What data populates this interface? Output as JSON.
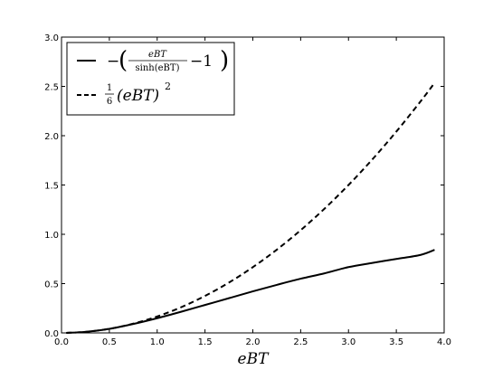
{
  "chart_data": {
    "type": "line",
    "title": "",
    "xlabel": "eBT",
    "ylabel": "",
    "xlim": [
      0.0,
      4.0
    ],
    "ylim": [
      0.0,
      3.0
    ],
    "grid": false,
    "legend_position": "top-left",
    "x_ticks": [
      "0.0",
      "0.5",
      "1.0",
      "1.5",
      "2.0",
      "2.5",
      "3.0",
      "3.5",
      "4.0"
    ],
    "y_ticks": [
      "0.0",
      "0.5",
      "1.0",
      "1.5",
      "2.0",
      "2.5",
      "3.0"
    ],
    "x": [
      0.05,
      0.25,
      0.5,
      0.75,
      1.0,
      1.25,
      1.5,
      1.75,
      2.0,
      2.25,
      2.5,
      2.75,
      3.0,
      3.25,
      3.5,
      3.75,
      3.9
    ],
    "series": [
      {
        "legend_text": {
          "prefix": "−",
          "numerator": "eBT",
          "denominator": "sinh(eBT)",
          "suffix": "−1"
        },
        "style": "solid",
        "color": "#000000",
        "values": [
          0.0004,
          0.0104,
          0.0411,
          0.0904,
          0.1491,
          0.2144,
          0.2834,
          0.3519,
          0.4215,
          0.487,
          0.55,
          0.6044,
          0.6673,
          0.71,
          0.75,
          0.79,
          0.842
        ]
      },
      {
        "legend_text": {
          "fraction_num": "1",
          "fraction_den": "6",
          "body": "(eBT)",
          "exponent": "2"
        },
        "style": "dashed",
        "color": "#000000",
        "values": [
          0.0004,
          0.0104,
          0.0417,
          0.0938,
          0.1667,
          0.2604,
          0.375,
          0.5104,
          0.6667,
          0.8438,
          1.0417,
          1.2604,
          1.5,
          1.7604,
          2.0417,
          2.3438,
          2.535
        ]
      }
    ]
  }
}
